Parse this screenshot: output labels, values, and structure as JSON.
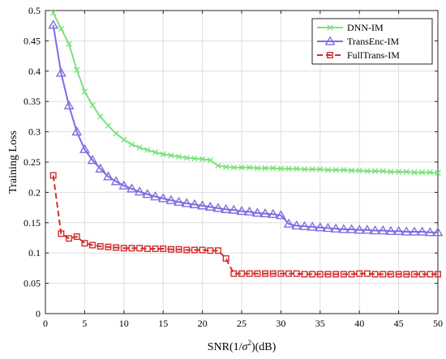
{
  "chart_data": {
    "type": "line",
    "xlabel": "SNR(1/σ²)(dB)",
    "xlabel_parts": {
      "pre": "SNR(1/",
      "sigma": "σ",
      "sup": "2",
      "post": ")(dB)"
    },
    "ylabel": "Training Loss",
    "xlim": [
      0,
      50
    ],
    "ylim": [
      0,
      0.5
    ],
    "xticks": [
      0,
      5,
      10,
      15,
      20,
      25,
      30,
      35,
      40,
      45,
      50
    ],
    "yticks": [
      0,
      0.05,
      0.1,
      0.15,
      0.2,
      0.25,
      0.3,
      0.35,
      0.4,
      0.45,
      0.5
    ],
    "ytick_labels": [
      "0",
      "0.05",
      "0.1",
      "0.15",
      "0.2",
      "0.25",
      "0.3",
      "0.35",
      "0.4",
      "0.45",
      "0.5"
    ],
    "grid": true,
    "legend_position": "top-right",
    "series": [
      {
        "name": "DNN-IM",
        "color": "#7be27b",
        "marker": "x",
        "dashed": false,
        "x": [
          1,
          2,
          3,
          4,
          5,
          6,
          7,
          8,
          9,
          10,
          11,
          12,
          13,
          14,
          15,
          16,
          17,
          18,
          19,
          20,
          21,
          22,
          23,
          24,
          25,
          26,
          27,
          28,
          29,
          30,
          31,
          32,
          33,
          34,
          35,
          36,
          37,
          38,
          39,
          40,
          41,
          42,
          43,
          44,
          45,
          46,
          47,
          48,
          49,
          50
        ],
        "y": [
          0.496,
          0.47,
          0.445,
          0.402,
          0.366,
          0.344,
          0.325,
          0.31,
          0.297,
          0.287,
          0.279,
          0.274,
          0.27,
          0.266,
          0.263,
          0.261,
          0.259,
          0.257,
          0.256,
          0.255,
          0.253,
          0.244,
          0.242,
          0.241,
          0.241,
          0.241,
          0.24,
          0.24,
          0.24,
          0.239,
          0.239,
          0.239,
          0.238,
          0.238,
          0.238,
          0.237,
          0.237,
          0.237,
          0.236,
          0.236,
          0.235,
          0.235,
          0.235,
          0.234,
          0.234,
          0.234,
          0.233,
          0.233,
          0.233,
          0.232
        ]
      },
      {
        "name": "TransEnc-IM",
        "color": "#7b6fe0",
        "marker": "triangle",
        "dashed": false,
        "x": [
          1,
          2,
          3,
          4,
          5,
          6,
          7,
          8,
          9,
          10,
          11,
          12,
          13,
          14,
          15,
          16,
          17,
          18,
          19,
          20,
          21,
          22,
          23,
          24,
          25,
          26,
          27,
          28,
          29,
          30,
          31,
          32,
          33,
          34,
          35,
          36,
          37,
          38,
          39,
          40,
          41,
          42,
          43,
          44,
          45,
          46,
          47,
          48,
          49,
          50
        ],
        "y": [
          0.476,
          0.397,
          0.343,
          0.3,
          0.271,
          0.253,
          0.239,
          0.226,
          0.218,
          0.211,
          0.206,
          0.201,
          0.197,
          0.193,
          0.19,
          0.187,
          0.184,
          0.182,
          0.18,
          0.178,
          0.176,
          0.174,
          0.172,
          0.171,
          0.169,
          0.168,
          0.166,
          0.165,
          0.164,
          0.162,
          0.148,
          0.145,
          0.144,
          0.143,
          0.142,
          0.141,
          0.14,
          0.139,
          0.139,
          0.138,
          0.138,
          0.137,
          0.137,
          0.136,
          0.136,
          0.135,
          0.135,
          0.135,
          0.134,
          0.134
        ]
      },
      {
        "name": "FullTrans-IM",
        "color": "#d12d2d",
        "marker": "square",
        "dashed": true,
        "x": [
          1,
          2,
          3,
          4,
          5,
          6,
          7,
          8,
          9,
          10,
          11,
          12,
          13,
          14,
          15,
          16,
          17,
          18,
          19,
          20,
          21,
          22,
          23,
          24,
          25,
          26,
          27,
          28,
          29,
          30,
          31,
          32,
          33,
          34,
          35,
          36,
          37,
          38,
          39,
          40,
          41,
          42,
          43,
          44,
          45,
          46,
          47,
          48,
          49,
          50
        ],
        "y": [
          0.228,
          0.132,
          0.124,
          0.127,
          0.116,
          0.113,
          0.111,
          0.11,
          0.109,
          0.108,
          0.108,
          0.108,
          0.107,
          0.107,
          0.107,
          0.106,
          0.106,
          0.105,
          0.105,
          0.105,
          0.104,
          0.104,
          0.091,
          0.066,
          0.066,
          0.066,
          0.066,
          0.066,
          0.066,
          0.066,
          0.066,
          0.066,
          0.065,
          0.065,
          0.065,
          0.065,
          0.065,
          0.065,
          0.065,
          0.066,
          0.066,
          0.065,
          0.065,
          0.065,
          0.065,
          0.065,
          0.065,
          0.065,
          0.065,
          0.065
        ]
      }
    ]
  }
}
